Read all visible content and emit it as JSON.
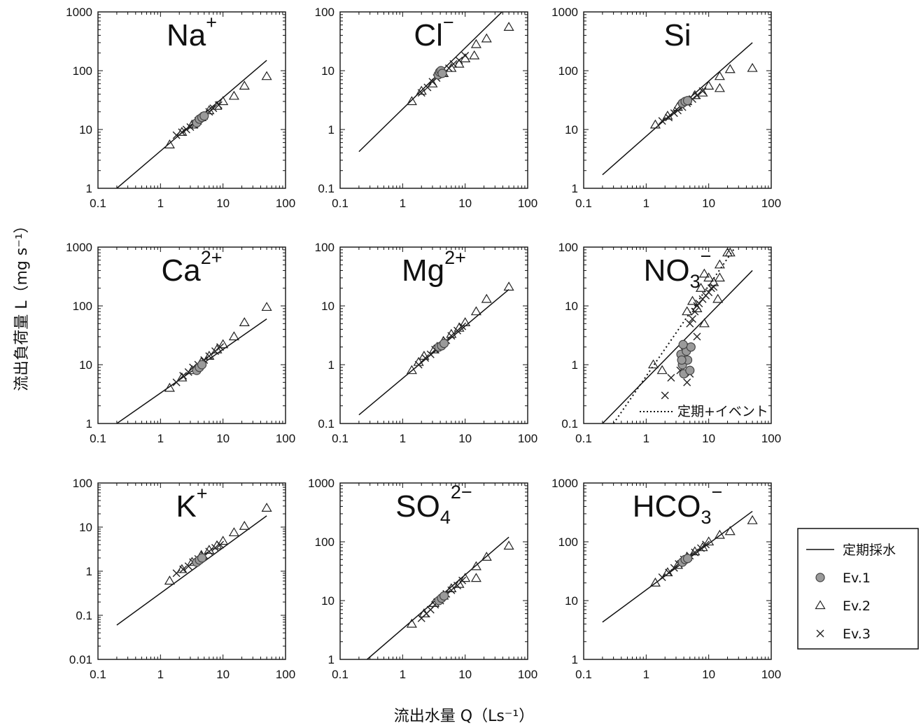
{
  "figure": {
    "ylabel": "流出負荷量 L（mg s⁻¹）",
    "xlabel": "流出水量 Q（Ls⁻¹）"
  },
  "legend": {
    "items": [
      {
        "label": "定期採水",
        "marker": "line"
      },
      {
        "label": "Ev.1",
        "marker": "circle"
      },
      {
        "label": "Ev.2",
        "marker": "triangle"
      },
      {
        "label": "Ev.3",
        "marker": "cross"
      }
    ]
  },
  "annotations": {
    "no3_dotted": "定期+イベント"
  },
  "colors": {
    "ev1_fill": "#9a9a9a",
    "line": "#111111"
  },
  "chart_data": [
    {
      "type": "scatter",
      "title": "Na",
      "title_sup": "+",
      "title_sub": "",
      "xscale": "log",
      "yscale": "log",
      "xlim": [
        0.1,
        100
      ],
      "ylim": [
        1,
        1000
      ],
      "xticks": [
        "0.1",
        "1",
        "10",
        "100"
      ],
      "yticks": [
        "1",
        "10",
        "100",
        "1000"
      ],
      "fit": {
        "x": [
          0.2,
          50
        ],
        "y": [
          1.0,
          150
        ]
      },
      "series": [
        {
          "name": "Ev.1",
          "x": [
            3.8,
            4.2,
            4.6,
            5.0
          ],
          "y": [
            13,
            15,
            16,
            17
          ]
        },
        {
          "name": "Ev.2",
          "x": [
            1.4,
            2.2,
            3.2,
            4.5,
            6.0,
            8.0,
            10,
            15,
            22,
            50
          ],
          "y": [
            5.5,
            9,
            12,
            16,
            21,
            25,
            30,
            37,
            55,
            80
          ]
        },
        {
          "name": "Ev.3",
          "x": [
            1.8,
            2.2,
            2.6,
            3.0,
            3.5,
            4.0,
            5.0,
            6.0,
            7.0,
            8.5
          ],
          "y": [
            8,
            9,
            10,
            11,
            12,
            14,
            17,
            20,
            23,
            26
          ]
        }
      ]
    },
    {
      "type": "scatter",
      "title": "Cl",
      "title_sup": "−",
      "title_sub": "",
      "xscale": "log",
      "yscale": "log",
      "xlim": [
        0.1,
        100
      ],
      "ylim": [
        0.1,
        100
      ],
      "xticks": [
        "0.1",
        "1",
        "10",
        "100"
      ],
      "yticks": [
        "0.1",
        "1",
        "10",
        "100"
      ],
      "fit": {
        "x": [
          0.2,
          50
        ],
        "y": [
          0.42,
          130
        ]
      },
      "series": [
        {
          "name": "Ev.1",
          "x": [
            3.7,
            3.9,
            4.1,
            4.3
          ],
          "y": [
            8.5,
            9.5,
            10,
            9
          ]
        },
        {
          "name": "Ev.2",
          "x": [
            1.4,
            2.0,
            3.0,
            4.5,
            6.0,
            8.0,
            10,
            15,
            14,
            22,
            50
          ],
          "y": [
            3.0,
            4.5,
            6.0,
            9,
            11,
            13,
            16,
            28,
            18,
            35,
            55
          ]
        },
        {
          "name": "Ev.3",
          "x": [
            2.0,
            2.5,
            3.0,
            3.5,
            4.5,
            5.5,
            6.5,
            8.0,
            10
          ],
          "y": [
            4.2,
            5.2,
            6.5,
            7.5,
            9,
            11,
            13,
            15,
            18
          ]
        }
      ]
    },
    {
      "type": "scatter",
      "title": "Si",
      "title_sup": "",
      "title_sub": "",
      "xscale": "log",
      "yscale": "log",
      "xlim": [
        0.1,
        100
      ],
      "ylim": [
        1,
        1000
      ],
      "xticks": [
        "0.1",
        "1",
        "10",
        "100"
      ],
      "yticks": [
        "1",
        "10",
        "100",
        "1000"
      ],
      "fit": {
        "x": [
          0.2,
          50
        ],
        "y": [
          1.7,
          300
        ]
      },
      "series": [
        {
          "name": "Ev.1",
          "x": [
            3.8,
            4.2,
            4.6
          ],
          "y": [
            28,
            30,
            31
          ]
        },
        {
          "name": "Ev.2",
          "x": [
            1.4,
            2.2,
            3.2,
            4.5,
            6.0,
            8.0,
            10,
            15,
            22,
            50,
            15
          ],
          "y": [
            12,
            17,
            24,
            30,
            38,
            42,
            55,
            80,
            105,
            110,
            50
          ]
        },
        {
          "name": "Ev.3",
          "x": [
            1.8,
            2.3,
            2.8,
            3.2,
            3.8,
            4.5,
            5.5,
            6.5,
            8.0
          ],
          "y": [
            14,
            16,
            19,
            21,
            24,
            28,
            33,
            38,
            45
          ]
        }
      ]
    },
    {
      "type": "scatter",
      "title": "Ca",
      "title_sup": "2+",
      "title_sub": "",
      "xscale": "log",
      "yscale": "log",
      "xlim": [
        0.1,
        100
      ],
      "ylim": [
        1,
        1000
      ],
      "xticks": [
        "0.1",
        "1",
        "10",
        "100"
      ],
      "yticks": [
        "1",
        "10",
        "100",
        "1000"
      ],
      "fit": {
        "x": [
          0.2,
          50
        ],
        "y": [
          1.0,
          60
        ]
      },
      "series": [
        {
          "name": "Ev.1",
          "x": [
            3.8,
            4.2,
            4.6
          ],
          "y": [
            8,
            9,
            10
          ]
        },
        {
          "name": "Ev.2",
          "x": [
            1.4,
            2.2,
            3.2,
            4.5,
            6.0,
            8.0,
            10,
            15,
            22,
            50
          ],
          "y": [
            4,
            6,
            8,
            11,
            14,
            18,
            22,
            30,
            52,
            95
          ]
        },
        {
          "name": "Ev.3",
          "x": [
            1.8,
            2.3,
            2.8,
            3.3,
            4.0,
            5.0,
            6.0,
            7.5,
            9.0
          ],
          "y": [
            5,
            6.5,
            7.5,
            9,
            10,
            12,
            14,
            17,
            20
          ]
        }
      ]
    },
    {
      "type": "scatter",
      "title": "Mg",
      "title_sup": "2+",
      "title_sub": "",
      "xscale": "log",
      "yscale": "log",
      "xlim": [
        0.1,
        100
      ],
      "ylim": [
        0.1,
        100
      ],
      "xticks": [
        "0.1",
        "1",
        "10",
        "100"
      ],
      "yticks": [
        "0.1",
        "1",
        "10",
        "100"
      ],
      "fit": {
        "x": [
          0.2,
          50
        ],
        "y": [
          0.14,
          19
        ]
      },
      "series": [
        {
          "name": "Ev.1",
          "x": [
            3.8,
            4.2,
            4.6
          ],
          "y": [
            2.0,
            2.1,
            2.3
          ]
        },
        {
          "name": "Ev.2",
          "x": [
            1.4,
            1.8,
            2.2,
            3.2,
            4.5,
            6.0,
            8.0,
            10,
            15,
            22,
            50
          ],
          "y": [
            0.8,
            1.1,
            1.4,
            1.8,
            2.5,
            3.3,
            4.2,
            5.2,
            8,
            13,
            21
          ]
        },
        {
          "name": "Ev.3",
          "x": [
            1.8,
            2.3,
            2.8,
            3.3,
            4.0,
            5.0,
            6.0,
            7.5,
            9.0
          ],
          "y": [
            1.0,
            1.3,
            1.5,
            1.8,
            2.1,
            2.6,
            3.1,
            3.8,
            4.5
          ]
        }
      ]
    },
    {
      "type": "scatter",
      "title": "NO",
      "title_sup": "−",
      "title_sub": "3",
      "xscale": "log",
      "yscale": "log",
      "xlim": [
        0.1,
        100
      ],
      "ylim": [
        0.1,
        100
      ],
      "xticks": [
        "0.1",
        "1",
        "10",
        "100"
      ],
      "yticks": [
        "0.1",
        "1",
        "10",
        "100"
      ],
      "fit": {
        "x": [
          0.2,
          50
        ],
        "y": [
          0.1,
          40
        ]
      },
      "fit_dotted": {
        "x": [
          0.3,
          30
        ],
        "y": [
          0.1,
          120
        ]
      },
      "series": [
        {
          "name": "Ev.1",
          "x": [
            3.6,
            3.8,
            4.0,
            4.2,
            4.4,
            4.6,
            5.0,
            5.2,
            3.7,
            3.9
          ],
          "y": [
            1.5,
            1.0,
            0.7,
            2.0,
            1.7,
            1.2,
            0.8,
            2.0,
            1.2,
            2.2
          ]
        },
        {
          "name": "Ev.2",
          "x": [
            1.3,
            1.8,
            4.5,
            5.5,
            6.5,
            7.5,
            8.5,
            10,
            12,
            15,
            15,
            20,
            22,
            14,
            8.5
          ],
          "y": [
            1.0,
            0.8,
            8,
            12,
            9,
            20,
            35,
            30,
            25,
            50,
            30,
            80,
            80,
            13,
            5
          ]
        },
        {
          "name": "Ev.3",
          "x": [
            2.0,
            2.5,
            3.5,
            4.5,
            5.0,
            5.5,
            6.0,
            6.5,
            7.0,
            8.0,
            9.0,
            10,
            11,
            12,
            5.0,
            6.5
          ],
          "y": [
            0.3,
            0.6,
            0.8,
            0.5,
            5,
            6,
            8,
            10,
            11,
            13,
            15,
            17,
            20,
            21,
            0.7,
            3
          ]
        }
      ]
    },
    {
      "type": "scatter",
      "title": "K",
      "title_sup": "+",
      "title_sub": "",
      "xscale": "log",
      "yscale": "log",
      "xlim": [
        0.1,
        100
      ],
      "ylim": [
        0.01,
        100
      ],
      "xticks": [
        "0.1",
        "1",
        "10",
        "100"
      ],
      "yticks": [
        "0.01",
        "0.1",
        "1",
        "10",
        "100"
      ],
      "fit": {
        "x": [
          0.2,
          50
        ],
        "y": [
          0.06,
          18
        ]
      },
      "series": [
        {
          "name": "Ev.1",
          "x": [
            3.8,
            4.2,
            4.6
          ],
          "y": [
            1.6,
            1.8,
            2.0
          ]
        },
        {
          "name": "Ev.2",
          "x": [
            1.4,
            2.2,
            3.2,
            4.5,
            6.0,
            8.0,
            10,
            15,
            22,
            50
          ],
          "y": [
            0.6,
            1.1,
            1.6,
            2.3,
            3.0,
            3.8,
            4.8,
            7.5,
            10.5,
            27
          ]
        },
        {
          "name": "Ev.3",
          "x": [
            1.8,
            2.3,
            2.8,
            3.3,
            4.0,
            5.0,
            6.0,
            7.5,
            9.0
          ],
          "y": [
            0.9,
            1.1,
            1.3,
            1.6,
            1.9,
            2.3,
            2.8,
            3.4,
            4.0
          ]
        }
      ]
    },
    {
      "type": "scatter",
      "title": "SO",
      "title_sup": "2−",
      "title_sub": "4",
      "xscale": "log",
      "yscale": "log",
      "xlim": [
        0.1,
        100
      ],
      "ylim": [
        1,
        1000
      ],
      "xticks": [
        "0.1",
        "1",
        "10",
        "100"
      ],
      "yticks": [
        "1",
        "10",
        "100",
        "1000"
      ],
      "fit": {
        "x": [
          0.27,
          50
        ],
        "y": [
          1.0,
          120
        ]
      },
      "series": [
        {
          "name": "Ev.1",
          "x": [
            3.8,
            4.2,
            4.6
          ],
          "y": [
            10,
            11,
            12
          ]
        },
        {
          "name": "Ev.2",
          "x": [
            1.4,
            2.2,
            3.2,
            4.5,
            6.0,
            8.0,
            10,
            15,
            22,
            50,
            15
          ],
          "y": [
            4,
            6,
            9,
            12,
            16,
            19,
            24,
            38,
            55,
            85,
            24
          ]
        },
        {
          "name": "Ev.3",
          "x": [
            2.0,
            2.4,
            2.8,
            3.3,
            4.0,
            5.0,
            6.0,
            7.5,
            9.0
          ],
          "y": [
            5,
            6,
            7,
            8.5,
            10,
            13,
            15,
            18,
            22
          ]
        }
      ]
    },
    {
      "type": "scatter",
      "title": "HCO",
      "title_sup": "−",
      "title_sub": "3",
      "xscale": "log",
      "yscale": "log",
      "xlim": [
        0.1,
        100
      ],
      "ylim": [
        1,
        1000
      ],
      "xticks": [
        "0.1",
        "1",
        "10",
        "100"
      ],
      "yticks": [
        "1",
        "10",
        "100",
        "1000"
      ],
      "fit": {
        "x": [
          0.2,
          50
        ],
        "y": [
          4.3,
          330
        ]
      },
      "series": [
        {
          "name": "Ev.1",
          "x": [
            3.8,
            4.2,
            4.6
          ],
          "y": [
            45,
            50,
            52
          ]
        },
        {
          "name": "Ev.2",
          "x": [
            1.4,
            2.2,
            3.2,
            4.5,
            6.0,
            8.0,
            10,
            15,
            22,
            50
          ],
          "y": [
            20,
            30,
            40,
            55,
            68,
            80,
            100,
            130,
            150,
            230
          ]
        },
        {
          "name": "Ev.3",
          "x": [
            1.8,
            2.3,
            2.8,
            3.3,
            4.0,
            5.0,
            6.0,
            7.5,
            9.0
          ],
          "y": [
            25,
            30,
            36,
            42,
            50,
            58,
            66,
            78,
            90
          ]
        }
      ]
    }
  ]
}
